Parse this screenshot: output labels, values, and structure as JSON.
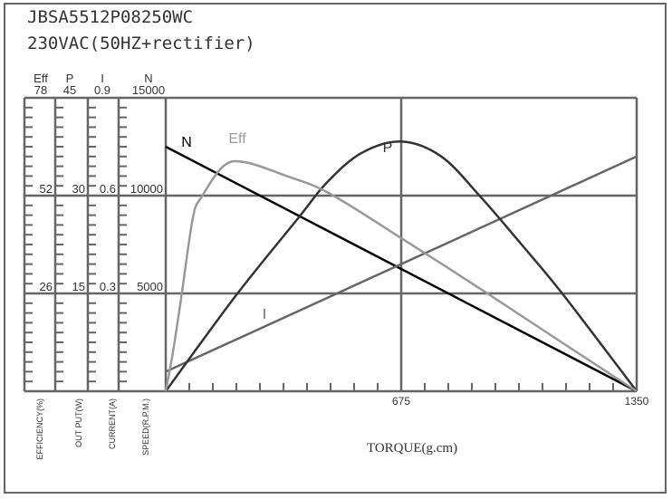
{
  "header": {
    "model": "JBSA5512P08250WC",
    "supply": "230VAC(50HZ+rectifier)"
  },
  "chart_data": {
    "type": "line",
    "xlabel": "TORQUE(g.cm)",
    "xlim": [
      0,
      1350
    ],
    "xticks": [
      675,
      1350
    ],
    "grid": true,
    "axes": [
      {
        "key": "eff",
        "name": "Eff",
        "max": 78,
        "ticks": [
          26,
          52,
          78
        ],
        "label": "EFFICIENCY(%)"
      },
      {
        "key": "p",
        "name": "P",
        "max": 45,
        "ticks": [
          15,
          30,
          45
        ],
        "label": "OUT PUT(W)"
      },
      {
        "key": "i",
        "name": "I",
        "max": 0.9,
        "ticks": [
          "0.3",
          "0.6",
          "0.9"
        ],
        "label": "CURRENT(A)"
      },
      {
        "key": "n",
        "name": "N",
        "max": 15000,
        "ticks": [
          5000,
          10000,
          15000
        ],
        "label": "SPEED(R.P.M.)"
      }
    ],
    "series": [
      {
        "name": "N",
        "axis": "n",
        "color": "#000000",
        "points": [
          [
            0,
            12500
          ],
          [
            1350,
            0
          ]
        ]
      },
      {
        "name": "I",
        "axis": "i",
        "color": "#666666",
        "points": [
          [
            0,
            0.06
          ],
          [
            1350,
            0.72
          ]
        ]
      },
      {
        "name": "P",
        "axis": "p",
        "color": "#333333",
        "points": [
          [
            0,
            0
          ],
          [
            200,
            14.6
          ],
          [
            382,
            26.7
          ],
          [
            460,
            31.9
          ],
          [
            560,
            36.5
          ],
          [
            675,
            38.3
          ],
          [
            790,
            36.0
          ],
          [
            901,
            29.9
          ],
          [
            1020,
            22.5
          ],
          [
            1135,
            15.1
          ],
          [
            1350,
            0
          ]
        ]
      },
      {
        "name": "Eff",
        "axis": "eff",
        "color": "#999999",
        "points": [
          [
            0,
            0
          ],
          [
            20,
            10
          ],
          [
            44,
            24.6
          ],
          [
            78,
            46.2
          ],
          [
            104,
            51.8
          ],
          [
            166,
            59.9
          ],
          [
            226,
            60.9
          ],
          [
            338,
            57.5
          ],
          [
            467,
            52.7
          ],
          [
            675,
            40.7
          ],
          [
            919,
            26.2
          ],
          [
            1135,
            13
          ],
          [
            1350,
            0
          ]
        ]
      }
    ]
  }
}
